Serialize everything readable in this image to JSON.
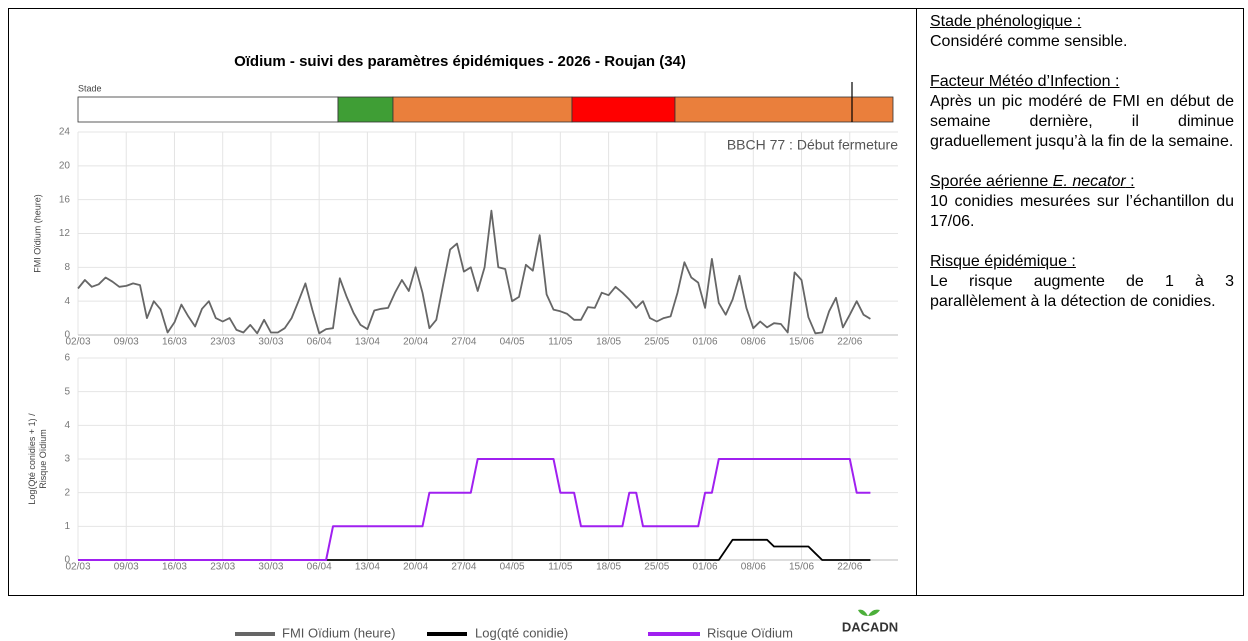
{
  "title": "Oïdium - suivi des paramètres épidémiques - 2026 - Roujan (34)",
  "stage_label": "Stade",
  "chart_data": [
    {
      "type": "line",
      "ylabel": "FMI Oïdium (heure)",
      "annotation": "BBCH 77 : Début fermeture",
      "xlim": [
        0,
        119
      ],
      "ylim": [
        0,
        24
      ],
      "yticks": [
        0,
        4,
        8,
        12,
        16,
        20,
        24
      ],
      "grid": true,
      "xticks": [
        {
          "value": 0,
          "label": "02/03"
        },
        {
          "value": 7,
          "label": "09/03"
        },
        {
          "value": 14,
          "label": "16/03"
        },
        {
          "value": 21,
          "label": "23/03"
        },
        {
          "value": 28,
          "label": "30/03"
        },
        {
          "value": 35,
          "label": "06/04"
        },
        {
          "value": 42,
          "label": "13/04"
        },
        {
          "value": 49,
          "label": "20/04"
        },
        {
          "value": 56,
          "label": "27/04"
        },
        {
          "value": 63,
          "label": "04/05"
        },
        {
          "value": 70,
          "label": "11/05"
        },
        {
          "value": 77,
          "label": "18/05"
        },
        {
          "value": 84,
          "label": "25/05"
        },
        {
          "value": 91,
          "label": "01/06"
        },
        {
          "value": 98,
          "label": "08/06"
        },
        {
          "value": 105,
          "label": "15/06"
        },
        {
          "value": 112,
          "label": "22/06"
        }
      ],
      "series": [
        {
          "name": "FMI Oïdium (heure)",
          "color": "#666666",
          "values": [
            5.5,
            6.5,
            5.7,
            6.0,
            6.8,
            6.3,
            5.7,
            5.8,
            6.1,
            5.9,
            2.0,
            4.0,
            3.0,
            0.3,
            1.5,
            3.6,
            2.2,
            1.0,
            3.1,
            4.0,
            2.0,
            1.6,
            2.0,
            0.6,
            0.3,
            1.2,
            0.2,
            1.8,
            0.3,
            0.3,
            0.8,
            2.0,
            4.0,
            6.1,
            3.0,
            0.2,
            0.7,
            0.8,
            6.7,
            4.5,
            2.6,
            1.2,
            0.7,
            2.9,
            3.1,
            3.2,
            5.0,
            6.5,
            5.2,
            8.0,
            5.0,
            0.8,
            1.8,
            6.0,
            10.1,
            10.8,
            7.5,
            8.0,
            5.2,
            8.0,
            14.7,
            8.0,
            7.8,
            4.0,
            4.5,
            8.3,
            7.6,
            11.8,
            4.8,
            3.0,
            2.8,
            2.5,
            1.8,
            1.8,
            3.3,
            3.2,
            5.0,
            4.7,
            5.7,
            5.0,
            4.2,
            3.2,
            4.0,
            2.0,
            1.6,
            2.0,
            2.2,
            5.0,
            8.6,
            6.8,
            6.2,
            3.2,
            9.0,
            3.8,
            2.4,
            4.2,
            7.0,
            3.2,
            0.8,
            1.6,
            0.9,
            1.4,
            1.3,
            0.3,
            7.4,
            6.5,
            2.1,
            0.2,
            0.3,
            2.8,
            4.4,
            0.9,
            2.4,
            4.0,
            2.4,
            1.9
          ]
        }
      ]
    },
    {
      "type": "line",
      "ylabel": [
        "Log(Qté conidies + 1) /",
        "Risque Oïdium"
      ],
      "xlim": [
        0,
        119
      ],
      "ylim": [
        0,
        6
      ],
      "yticks": [
        0,
        1,
        2,
        3,
        4,
        5,
        6
      ],
      "grid": true,
      "xticks": [
        {
          "value": 0,
          "label": "02/03"
        },
        {
          "value": 7,
          "label": "09/03"
        },
        {
          "value": 14,
          "label": "16/03"
        },
        {
          "value": 21,
          "label": "23/03"
        },
        {
          "value": 28,
          "label": "30/03"
        },
        {
          "value": 35,
          "label": "06/04"
        },
        {
          "value": 42,
          "label": "13/04"
        },
        {
          "value": 49,
          "label": "20/04"
        },
        {
          "value": 56,
          "label": "27/04"
        },
        {
          "value": 63,
          "label": "04/05"
        },
        {
          "value": 70,
          "label": "11/05"
        },
        {
          "value": 77,
          "label": "18/05"
        },
        {
          "value": 84,
          "label": "25/05"
        },
        {
          "value": 91,
          "label": "01/06"
        },
        {
          "value": 98,
          "label": "08/06"
        },
        {
          "value": 105,
          "label": "15/06"
        },
        {
          "value": 112,
          "label": "22/06"
        }
      ],
      "series": [
        {
          "name": "Log(qté conidie)",
          "color": "#000000",
          "values": [
            0,
            0,
            0,
            0,
            0,
            0,
            0,
            0,
            0,
            0,
            0,
            0,
            0,
            0,
            0,
            0,
            0,
            0,
            0,
            0,
            0,
            0,
            0,
            0,
            0,
            0,
            0,
            0,
            0,
            0,
            0,
            0,
            0,
            0,
            0,
            0,
            0,
            0,
            0,
            0,
            0,
            0,
            0,
            0,
            0,
            0,
            0,
            0,
            0,
            0,
            0,
            0,
            0,
            0,
            0,
            0,
            0,
            0,
            0,
            0,
            0,
            0,
            0,
            0,
            0,
            0,
            0,
            0,
            0,
            0,
            0,
            0,
            0,
            0,
            0,
            0,
            0,
            0,
            0,
            0,
            0,
            0,
            0,
            0,
            0,
            0,
            0,
            0,
            0,
            0,
            0,
            0,
            0,
            0,
            0.3,
            0.6,
            0.6,
            0.6,
            0.6,
            0.6,
            0.6,
            0.4,
            0.4,
            0.4,
            0.4,
            0.4,
            0.4,
            0.2,
            0,
            0,
            0,
            0,
            0,
            0,
            0,
            0
          ]
        },
        {
          "name": "Risque Oïdium",
          "color": "#a020f0",
          "values": [
            0,
            0,
            0,
            0,
            0,
            0,
            0,
            0,
            0,
            0,
            0,
            0,
            0,
            0,
            0,
            0,
            0,
            0,
            0,
            0,
            0,
            0,
            0,
            0,
            0,
            0,
            0,
            0,
            0,
            0,
            0,
            0,
            0,
            0,
            0,
            0,
            0,
            1,
            1,
            1,
            1,
            1,
            1,
            1,
            1,
            1,
            1,
            1,
            1,
            1,
            1,
            2,
            2,
            2,
            2,
            2,
            2,
            2,
            3,
            3,
            3,
            3,
            3,
            3,
            3,
            3,
            3,
            3,
            3,
            3,
            2,
            2,
            2,
            1,
            1,
            1,
            1,
            1,
            1,
            1,
            2,
            2,
            1,
            1,
            1,
            1,
            1,
            1,
            1,
            1,
            1,
            2,
            2,
            3,
            3,
            3,
            3,
            3,
            3,
            3,
            3,
            3,
            3,
            3,
            3,
            3,
            3,
            3,
            3,
            3,
            3,
            3,
            3,
            2,
            2,
            2
          ]
        }
      ]
    }
  ],
  "panel": {
    "sections": [
      {
        "heading": [
          "Stade phénologique :"
        ],
        "text": "Considéré comme sensible."
      },
      {
        "heading": [
          "Facteur Météo d’Infection :"
        ],
        "text": "Après un pic modéré de FMI en début de semaine dernière, il diminue graduellement jusqu’à la fin de la semaine."
      },
      {
        "heading": [
          "Sporée aérienne ",
          "E. necator",
          " :"
        ],
        "text": "10 conidies mesurées sur l’échantillon du 17/06."
      },
      {
        "heading": [
          "Risque épidémique :"
        ],
        "text": "Le risque augmente de 1 à 3 parallèlement à la détection de conidies."
      }
    ]
  },
  "logo": "DACADN"
}
